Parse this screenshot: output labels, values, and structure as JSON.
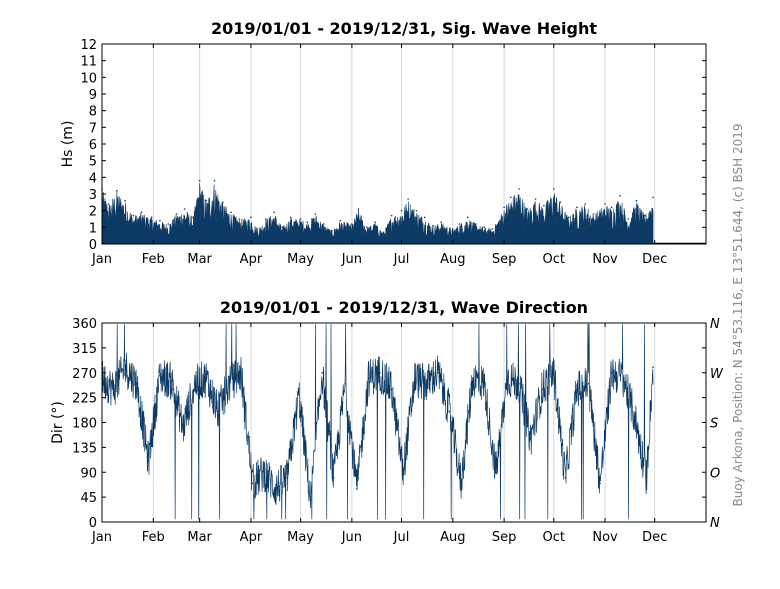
{
  "credit": "Buoy Arkona, Position: N 54°53.116, E 13°51.644, (c) BSH 2019",
  "colors": {
    "series": "#0d3a64",
    "grid": "#d9d9d9",
    "axis": "#000000",
    "credit": "#8a8a8a"
  },
  "chart_data": [
    {
      "type": "area",
      "title": "2019/01/01 - 2019/12/31, Sig. Wave Height",
      "ylabel": "Hs (m)",
      "xlabel": "",
      "ylim": [
        0,
        12
      ],
      "yticks": [
        "0",
        "1",
        "2",
        "3",
        "4",
        "5",
        "6",
        "7",
        "8",
        "9",
        "10",
        "11",
        "12"
      ],
      "xticks": [
        "Jan",
        "Feb",
        "Mar",
        "Apr",
        "May",
        "Jun",
        "Jul",
        "Aug",
        "Sep",
        "Oct",
        "Nov",
        "Dec"
      ],
      "grid": "vertical at month starts",
      "series": [
        {
          "x": [
            "2019-01-01",
            "2019-01-05",
            "2019-01-10",
            "2019-01-15",
            "2019-01-20",
            "2019-01-25",
            "2019-01-31",
            "2019-02-05",
            "2019-02-10",
            "2019-02-15",
            "2019-02-20",
            "2019-02-25",
            "2019-03-01",
            "2019-03-05",
            "2019-03-10",
            "2019-03-15",
            "2019-03-20",
            "2019-03-25",
            "2019-04-01",
            "2019-04-05",
            "2019-04-10",
            "2019-04-15",
            "2019-04-20",
            "2019-04-25",
            "2019-05-01",
            "2019-05-05",
            "2019-05-10",
            "2019-05-15",
            "2019-05-20",
            "2019-05-25",
            "2019-06-01",
            "2019-06-05",
            "2019-06-10",
            "2019-06-15",
            "2019-06-20",
            "2019-06-25",
            "2019-07-01",
            "2019-07-05",
            "2019-07-10",
            "2019-07-15",
            "2019-07-20",
            "2019-07-25",
            "2019-08-01",
            "2019-08-05",
            "2019-08-10",
            "2019-08-15",
            "2019-08-20",
            "2019-08-25",
            "2019-09-01",
            "2019-09-05",
            "2019-09-10",
            "2019-09-15",
            "2019-09-20",
            "2019-09-25",
            "2019-10-01",
            "2019-10-05",
            "2019-10-10",
            "2019-10-15",
            "2019-10-20",
            "2019-10-25",
            "2019-11-01",
            "2019-11-05",
            "2019-11-10",
            "2019-11-15",
            "2019-11-20",
            "2019-11-25",
            "2019-11-30"
          ],
          "values": [
            3.3,
            2.4,
            3.2,
            2.6,
            1.7,
            1.9,
            1.6,
            1.4,
            1.2,
            1.8,
            2.1,
            1.6,
            3.8,
            2.6,
            3.8,
            2.5,
            1.9,
            1.5,
            1.6,
            0.9,
            1.5,
            1.9,
            1.0,
            1.6,
            1.5,
            1.3,
            1.8,
            1.2,
            0.8,
            1.4,
            1.2,
            2.1,
            1.0,
            1.3,
            0.7,
            1.7,
            2.0,
            2.7,
            2.0,
            1.6,
            1.1,
            1.3,
            0.9,
            1.2,
            1.6,
            1.2,
            1.0,
            0.9,
            2.2,
            2.8,
            3.3,
            2.1,
            2.7,
            2.3,
            3.3,
            2.5,
            1.6,
            2.2,
            2.4,
            1.8,
            2.4,
            2.2,
            2.9,
            1.5,
            2.6,
            1.7,
            2.8
          ]
        }
      ]
    },
    {
      "type": "line",
      "title": "2019/01/01 - 2019/12/31, Wave Direction",
      "ylabel": "Dir (°)",
      "xlabel": "",
      "ylim": [
        0,
        360
      ],
      "yticks": [
        "0",
        "45",
        "90",
        "135",
        "180",
        "225",
        "270",
        "315",
        "360"
      ],
      "yticks_right": [
        "N",
        "O",
        "S",
        "W",
        "N"
      ],
      "xticks": [
        "Jan",
        "Feb",
        "Mar",
        "Apr",
        "May",
        "Jun",
        "Jul",
        "Aug",
        "Sep",
        "Oct",
        "Nov",
        "Dec"
      ],
      "grid": "vertical at month starts",
      "series": [
        {
          "x": [
            "2019-01-01",
            "2019-01-08",
            "2019-01-15",
            "2019-01-22",
            "2019-01-29",
            "2019-02-05",
            "2019-02-12",
            "2019-02-19",
            "2019-02-26",
            "2019-03-05",
            "2019-03-12",
            "2019-03-19",
            "2019-03-26",
            "2019-04-02",
            "2019-04-09",
            "2019-04-16",
            "2019-04-23",
            "2019-04-30",
            "2019-05-07",
            "2019-05-14",
            "2019-05-21",
            "2019-05-28",
            "2019-06-04",
            "2019-06-11",
            "2019-06-18",
            "2019-06-25",
            "2019-07-02",
            "2019-07-09",
            "2019-07-16",
            "2019-07-23",
            "2019-07-30",
            "2019-08-06",
            "2019-08-13",
            "2019-08-20",
            "2019-08-27",
            "2019-09-03",
            "2019-09-10",
            "2019-09-17",
            "2019-09-24",
            "2019-10-01",
            "2019-10-08",
            "2019-10-15",
            "2019-10-22",
            "2019-10-29",
            "2019-11-05",
            "2019-11-12",
            "2019-11-19",
            "2019-11-26",
            "2019-11-30"
          ],
          "values": [
            260,
            240,
            280,
            250,
            110,
            265,
            255,
            170,
            250,
            260,
            200,
            250,
            270,
            70,
            90,
            60,
            80,
            230,
            40,
            270,
            80,
            250,
            60,
            260,
            270,
            240,
            90,
            260,
            250,
            270,
            200,
            70,
            260,
            250,
            90,
            260,
            250,
            150,
            240,
            270,
            80,
            240,
            250,
            70,
            270,
            260,
            190,
            80,
            280
          ]
        }
      ]
    }
  ]
}
